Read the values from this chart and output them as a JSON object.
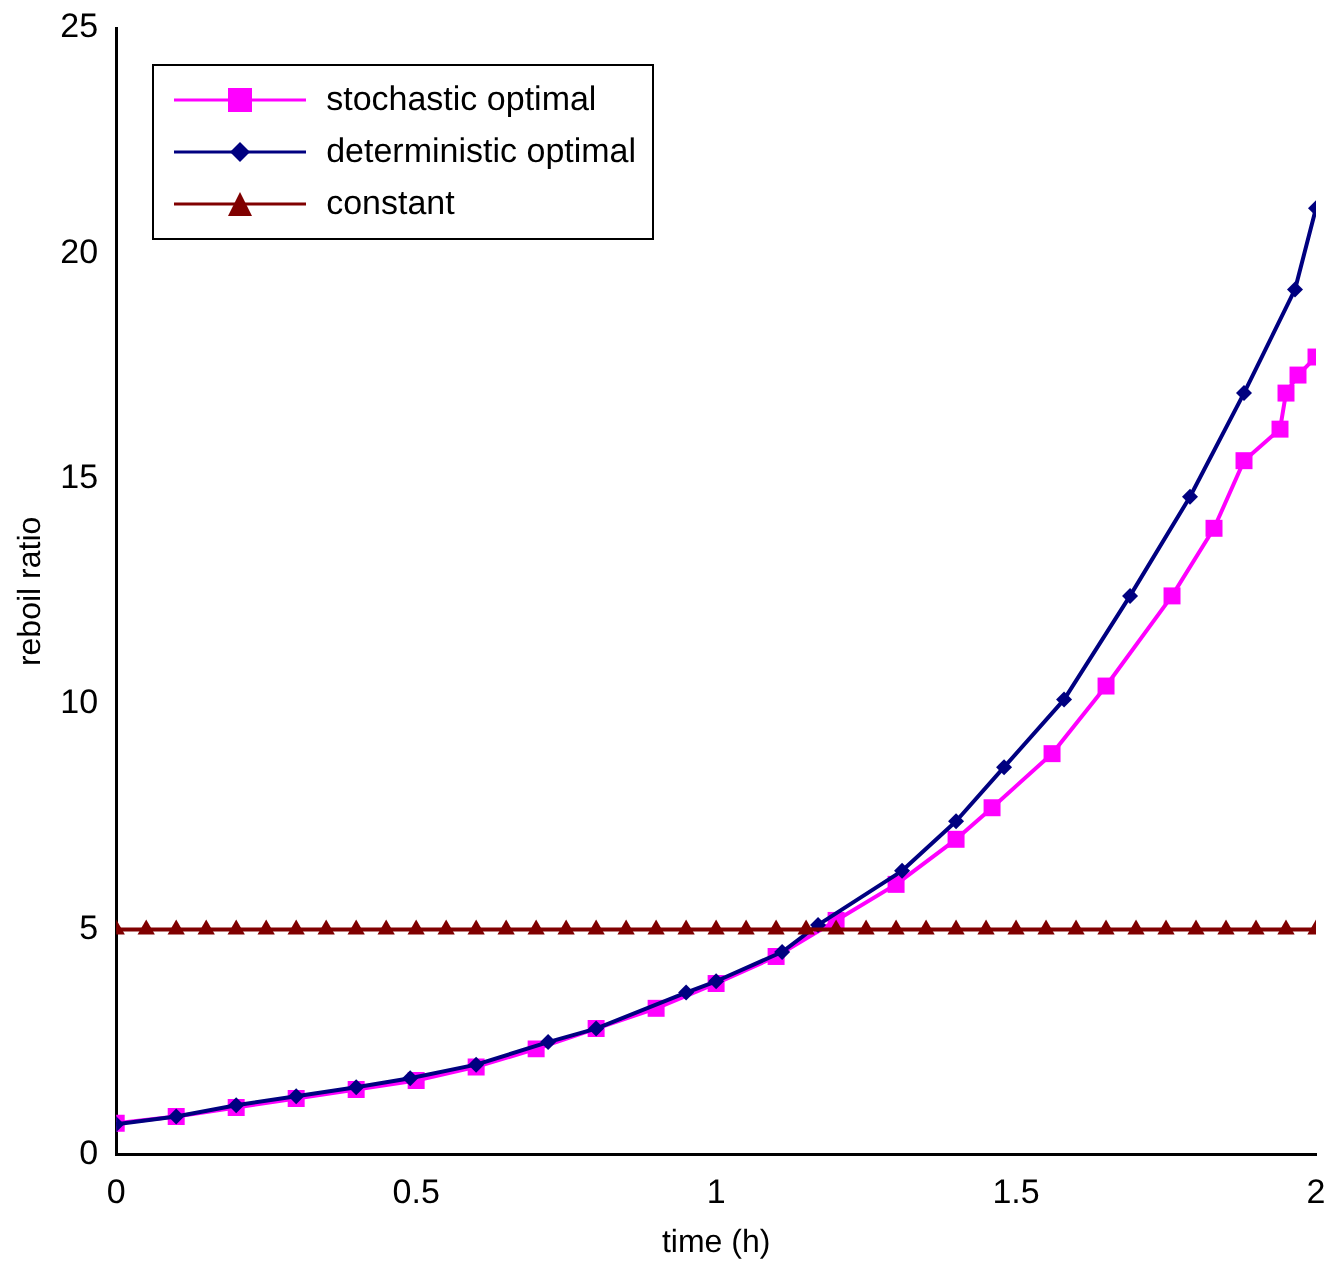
{
  "chart_data": {
    "type": "line",
    "xlabel": "time (h)",
    "ylabel": "reboil ratio",
    "xlim": [
      0,
      2
    ],
    "xticks": [
      0,
      0.5,
      1,
      1.5,
      2
    ],
    "ylim": [
      0,
      25
    ],
    "yticks": [
      0,
      5,
      10,
      15,
      20,
      25
    ],
    "grid": false,
    "legend": "top left",
    "line_style": "solid",
    "series": [
      {
        "name": "stochastic optimal",
        "color": "#ff00ff",
        "marker": "square",
        "x": [
          0,
          0.1,
          0.2,
          0.3,
          0.4,
          0.5,
          0.6,
          0.7,
          0.8,
          0.9,
          1.0,
          1.1,
          1.2,
          1.3,
          1.4,
          1.46,
          1.56,
          1.65,
          1.76,
          1.83,
          1.88,
          1.94,
          1.95,
          1.97,
          2.0
        ],
        "values": [
          0.7,
          0.85,
          1.05,
          1.25,
          1.45,
          1.65,
          1.95,
          2.35,
          2.8,
          3.25,
          3.8,
          4.4,
          5.2,
          6.0,
          7.0,
          7.7,
          8.9,
          10.4,
          12.4,
          13.9,
          15.4,
          16.1,
          16.9,
          17.3,
          17.7
        ]
      },
      {
        "name": "deterministic optimal",
        "color": "#000080",
        "marker": "diamond",
        "x": [
          0,
          0.1,
          0.2,
          0.3,
          0.4,
          0.49,
          0.6,
          0.72,
          0.8,
          0.95,
          1.0,
          1.11,
          1.17,
          1.31,
          1.4,
          1.48,
          1.58,
          1.69,
          1.79,
          1.88,
          1.965,
          2.0
        ],
        "values": [
          0.68,
          0.85,
          1.1,
          1.3,
          1.5,
          1.7,
          2.0,
          2.5,
          2.8,
          3.6,
          3.85,
          4.5,
          5.1,
          6.3,
          7.4,
          8.6,
          10.1,
          12.4,
          14.6,
          16.9,
          19.2,
          21.0
        ]
      },
      {
        "name": "constant",
        "color": "#800000",
        "marker": "triangle",
        "x": [
          0,
          0.05,
          0.1,
          0.15,
          0.2,
          0.25,
          0.3,
          0.35,
          0.4,
          0.45,
          0.5,
          0.55,
          0.6,
          0.65,
          0.7,
          0.75,
          0.8,
          0.85,
          0.9,
          0.95,
          1.0,
          1.05,
          1.1,
          1.15,
          1.2,
          1.25,
          1.3,
          1.35,
          1.4,
          1.45,
          1.5,
          1.55,
          1.6,
          1.65,
          1.7,
          1.75,
          1.8,
          1.85,
          1.9,
          1.95,
          2.0
        ],
        "values": [
          5,
          5,
          5,
          5,
          5,
          5,
          5,
          5,
          5,
          5,
          5,
          5,
          5,
          5,
          5,
          5,
          5,
          5,
          5,
          5,
          5,
          5,
          5,
          5,
          5,
          5,
          5,
          5,
          5,
          5,
          5,
          5,
          5,
          5,
          5,
          5,
          5,
          5,
          5,
          5,
          5
        ]
      }
    ]
  }
}
